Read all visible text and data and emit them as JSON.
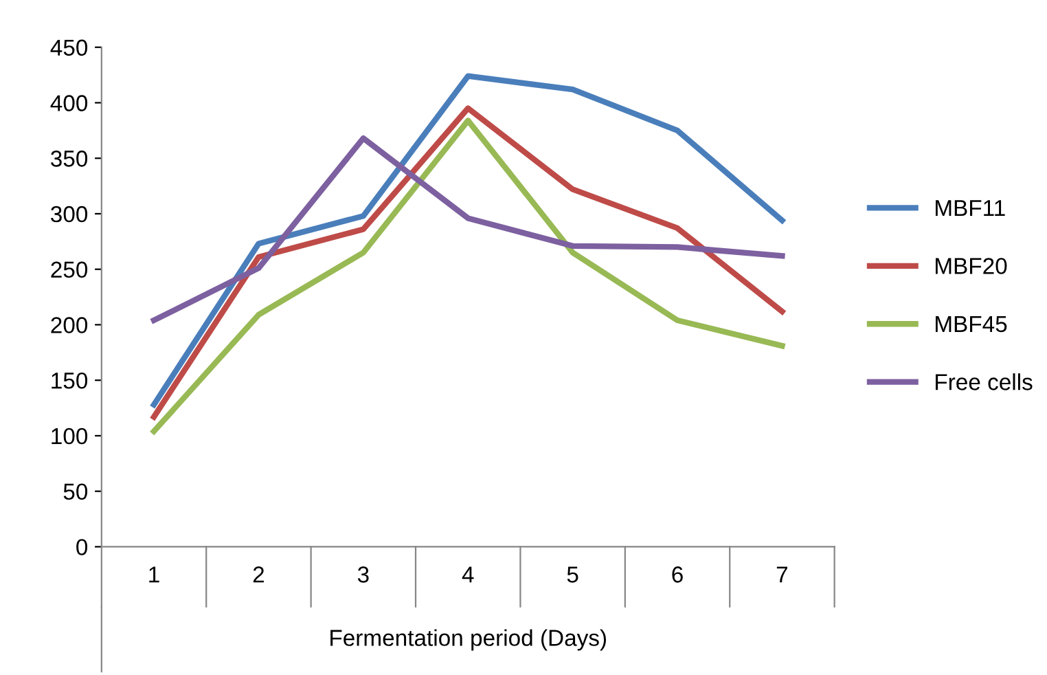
{
  "chart_data": {
    "type": "line",
    "xlabel": "Fermentation period (Days)",
    "categories": [
      "1",
      "2",
      "3",
      "4",
      "5",
      "6",
      "7"
    ],
    "series": [
      {
        "name": "MBF11",
        "color": "#4a7ebb",
        "values": [
          128,
          273,
          298,
          424,
          412,
          375,
          294
        ]
      },
      {
        "name": "MBF20",
        "color": "#be4b48",
        "values": [
          117,
          261,
          286,
          395,
          322,
          287,
          212
        ]
      },
      {
        "name": "MBF45",
        "color": "#98b954",
        "values": [
          104,
          209,
          265,
          384,
          265,
          204,
          181
        ]
      },
      {
        "name": "Free cells",
        "color": "#7d60a0",
        "values": [
          204,
          251,
          368,
          296,
          271,
          270,
          262
        ]
      }
    ],
    "ylim": [
      0,
      450
    ],
    "yticks": [
      0,
      50,
      100,
      150,
      200,
      250,
      300,
      350,
      400,
      450
    ],
    "grid": false,
    "legend": "right",
    "marker": "none",
    "line_style": "solid"
  }
}
